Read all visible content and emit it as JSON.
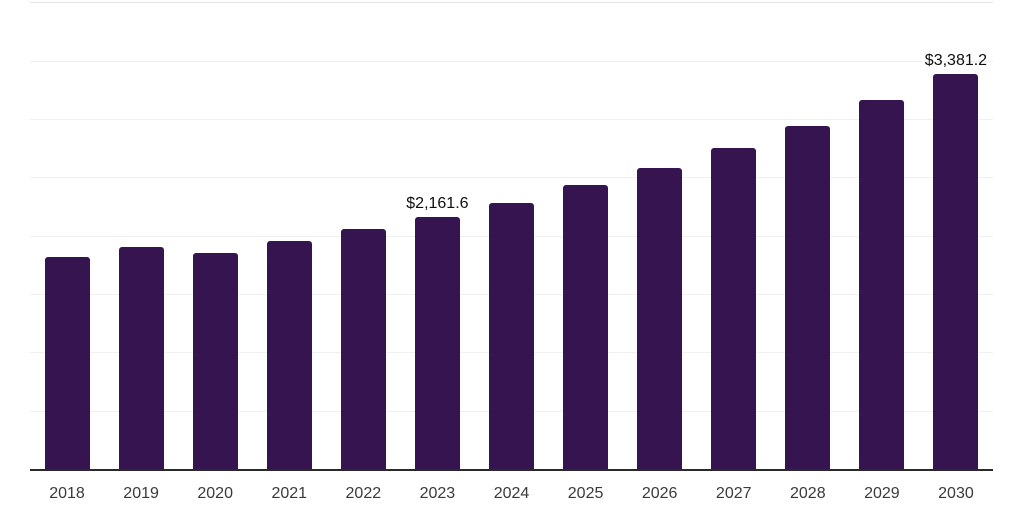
{
  "chart_data": {
    "type": "bar",
    "title": "",
    "xlabel": "",
    "ylabel": "",
    "categories": [
      "2018",
      "2019",
      "2020",
      "2021",
      "2022",
      "2023",
      "2024",
      "2025",
      "2026",
      "2027",
      "2028",
      "2029",
      "2030"
    ],
    "values": [
      1820,
      1905,
      1855,
      1950,
      2055,
      2161.6,
      2280,
      2435,
      2580,
      2750,
      2940,
      3165,
      3381.2
    ],
    "annotations": [
      {
        "category": "2023",
        "text": "$2,161.6"
      },
      {
        "category": "2030",
        "text": "$3,381.2"
      }
    ],
    "ylim": [
      0,
      4000
    ],
    "grid_step": 500,
    "grid": true,
    "legend": false,
    "y_tick_labels_shown": false,
    "colors": {
      "bar": "#361450",
      "axis_line": "#2a2a2a",
      "gridline": "#f0f0f0",
      "top_gridline": "#e6e6e6",
      "tick_label": "#3a3a3a",
      "value_label": "#0f0f0f",
      "background": "#ffffff"
    }
  }
}
